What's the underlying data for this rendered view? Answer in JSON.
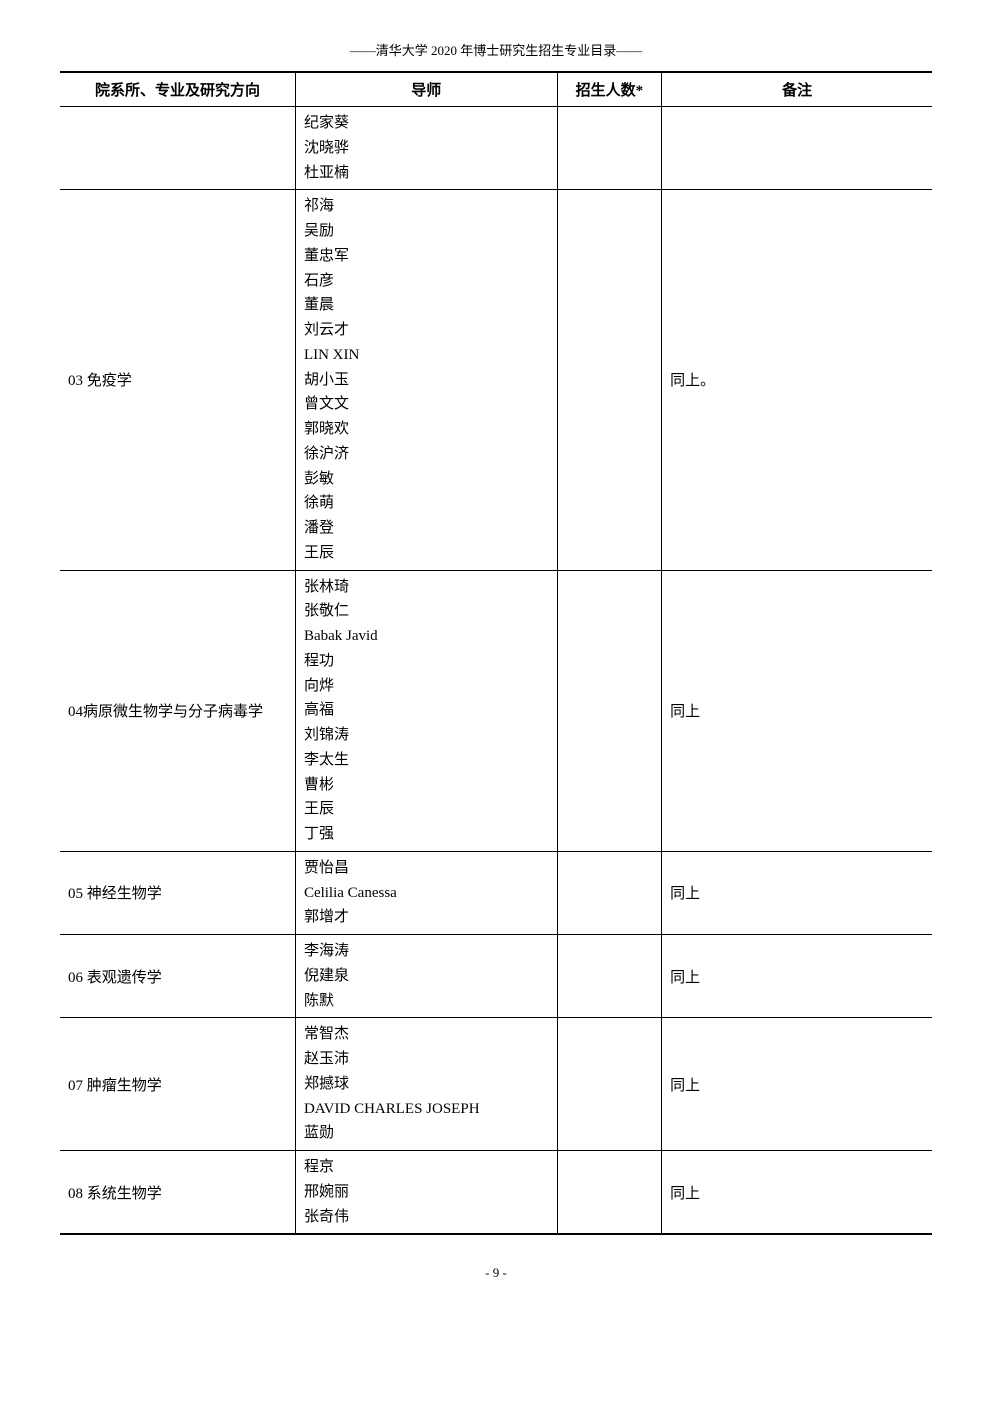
{
  "header": "——清华大学 2020 年博士研究生招生专业目录——",
  "columns": {
    "dept": "院系所、专业及研究方向",
    "advisor": "导师",
    "enroll": "招生人数*",
    "remark": "备注"
  },
  "rows": [
    {
      "dept": "",
      "advisors": [
        "纪家葵",
        "沈晓骅",
        "杜亚楠"
      ],
      "enroll": "",
      "remark": ""
    },
    {
      "dept": "03 免疫学",
      "advisors": [
        "祁海",
        "吴励",
        "董忠军",
        "石彦",
        "董晨",
        "刘云才",
        "LIN XIN",
        "胡小玉",
        "曾文文",
        "郭晓欢",
        "徐沪济",
        "彭敏",
        "徐萌",
        "潘登",
        "王辰"
      ],
      "enroll": "",
      "remark": "同上。"
    },
    {
      "dept": "04病原微生物学与分子病毒学",
      "advisors": [
        "张林琦",
        "张敬仁",
        "Babak Javid",
        "程功",
        "向烨",
        "高福",
        "刘锦涛",
        "李太生",
        "曹彬",
        "王辰",
        "丁强"
      ],
      "enroll": "",
      "remark": "同上"
    },
    {
      "dept": "05 神经生物学",
      "advisors": [
        "贾怡昌",
        "Celilia Canessa",
        "郭增才"
      ],
      "enroll": "",
      "remark": "同上"
    },
    {
      "dept": "06 表观遗传学",
      "advisors": [
        "李海涛",
        "倪建泉",
        "陈默"
      ],
      "enroll": "",
      "remark": "同上"
    },
    {
      "dept": "07 肿瘤生物学",
      "advisors": [
        "常智杰",
        "赵玉沛",
        "郑撼球",
        "DAVID CHARLES JOSEPH",
        "蓝勋"
      ],
      "enroll": "",
      "remark": "同上"
    },
    {
      "dept": "08 系统生物学",
      "advisors": [
        "程京",
        "邢婉丽",
        "张奇伟"
      ],
      "enroll": "",
      "remark": "同上"
    }
  ],
  "footer": "- 9 -"
}
